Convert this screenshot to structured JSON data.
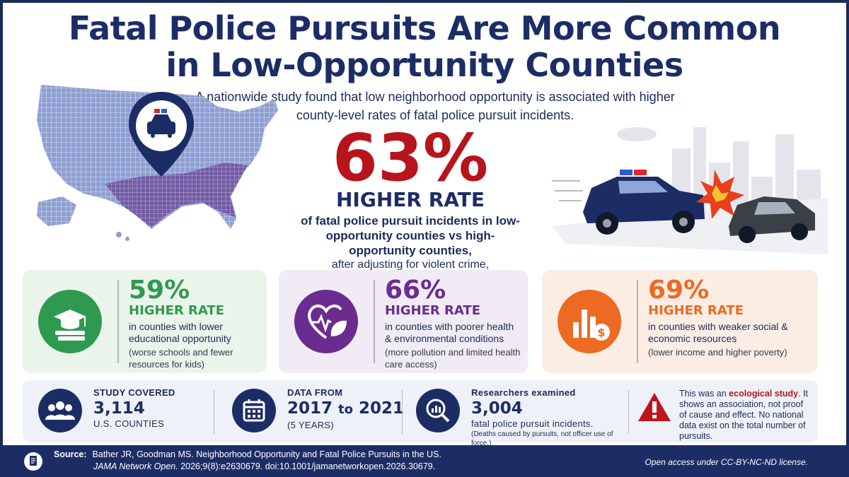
{
  "title": {
    "line1": "Fatal Police Pursuits Are More Common",
    "line2": "in Low-Opportunity Counties"
  },
  "subtitle": "A nationwide study found that low neighborhood opportunity is associated with higher county-level rates of fatal police pursuit incidents.",
  "hero": {
    "percent": "63%",
    "label": "HIGHER RATE",
    "description": "of fatal police pursuit incidents in low-opportunity counties vs high-opportunity counties,",
    "adjustment": "after adjusting for violent crime, demographics, and urban/rural status."
  },
  "cards": [
    {
      "percent": "59%",
      "label": "HIGHER RATE",
      "description": "in counties with lower educational opportunity",
      "note": "(worse schools and fewer resources for kids)",
      "icon": "graduation-cap-books-icon",
      "color": "#2e9a50"
    },
    {
      "percent": "66%",
      "label": "HIGHER RATE",
      "description": "in counties with poorer health & environmental conditions",
      "note": "(more pollution and limited health care access)",
      "icon": "heart-leaf-icon",
      "color": "#6a2c8e"
    },
    {
      "percent": "69%",
      "label": "HIGHER RATE",
      "description": "in counties with weaker social & economic resources",
      "note": "(lower income and higher poverty)",
      "icon": "bar-chart-dollar-icon",
      "color": "#ec6a22"
    }
  ],
  "info": {
    "study": {
      "label": "STUDY COVERED",
      "value": "3,114",
      "sub": "U.S. COUNTIES"
    },
    "data": {
      "label": "DATA FROM",
      "from": "2017",
      "to_word": "to",
      "to": "2021",
      "sub": "(5 YEARS)"
    },
    "researchers": {
      "label": "Researchers examined",
      "value": "3,004",
      "sub": "fatal police pursuit incidents.",
      "note": "(Deaths caused by pursuits, not officer use of force.)"
    },
    "warning": {
      "before": "This was an ",
      "highlight": "ecological study",
      "after": ". It shows an association, not proof of cause and effect. No national data exist on the total number of pursuits."
    }
  },
  "footer": {
    "source_label": "Source:",
    "source_line1": "Bather JR, Goodman MS. Neighborhood Opportunity and Fatal Police Pursuits in the US.",
    "journal": "JAMA Network Open.",
    "citation": " 2026;9(8):e2630679.  doi:10.1001/jamanetworkopen.2026.30679.",
    "license": "Open access under CC-BY-NC-ND license."
  },
  "colors": {
    "navy": "#1c2d66",
    "red": "#b8141b",
    "green": "#2e9a50",
    "purple": "#6a2c8e",
    "orange": "#ec6a22"
  }
}
